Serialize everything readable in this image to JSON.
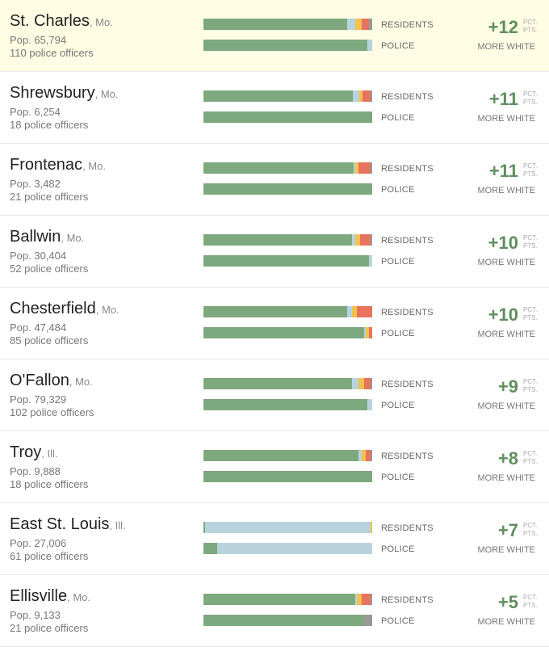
{
  "labels": {
    "residents": "RESIDENTS",
    "police": "POLICE",
    "pct": "PCT.",
    "pts": "PTS.",
    "more": "MORE WHITE"
  },
  "colors": {
    "white": "#7ea87e",
    "black": "#b9d3de",
    "hispanic": "#f2c14e",
    "asian": "#e8735e",
    "other": "#999999",
    "highlight_bg": "#fffde3",
    "diff_text": "#5f8f5f"
  },
  "chart_data": {
    "type": "bar",
    "segments": [
      "white",
      "black",
      "hispanic",
      "asian",
      "other"
    ],
    "rows": [
      {
        "city": "St. Charles",
        "state": ", Mo.",
        "pop": "Pop. 65,794",
        "officers": "110 police officers",
        "diff": "+12",
        "highlight": true,
        "residents": [
          85,
          5,
          4,
          4,
          2
        ],
        "police": [
          97,
          3,
          0,
          0,
          0
        ]
      },
      {
        "city": "Shrewsbury",
        "state": ", Mo.",
        "pop": "Pop. 6,254",
        "officers": "18 police officers",
        "diff": "+11",
        "residents": [
          88.5,
          4,
          2,
          4.5,
          1
        ],
        "police": [
          100,
          0,
          0,
          0,
          0
        ]
      },
      {
        "city": "Frontenac",
        "state": ", Mo.",
        "pop": "Pop. 3,482",
        "officers": "21 police officers",
        "diff": "+11",
        "residents": [
          89,
          1,
          2,
          7,
          1
        ],
        "police": [
          100,
          0,
          0,
          0,
          0
        ]
      },
      {
        "city": "Ballwin",
        "state": ", Mo.",
        "pop": "Pop. 30,404",
        "officers": "52 police officers",
        "diff": "+10",
        "residents": [
          88,
          2,
          3,
          6,
          1
        ],
        "police": [
          98,
          2,
          0,
          0,
          0
        ]
      },
      {
        "city": "Chesterfield",
        "state": ", Mo.",
        "pop": "Pop. 47,484",
        "officers": "85 police officers",
        "diff": "+10",
        "residents": [
          85,
          3,
          3,
          9,
          0
        ],
        "police": [
          95,
          1,
          2,
          2,
          0
        ]
      },
      {
        "city": "O'Fallon",
        "state": ", Mo.",
        "pop": "Pop. 79,329",
        "officers": "102 police officers",
        "diff": "+9",
        "residents": [
          88,
          4,
          3,
          4,
          1
        ],
        "police": [
          97,
          3,
          0,
          0,
          0
        ]
      },
      {
        "city": "Troy",
        "state": ", Ill.",
        "pop": "Pop. 9,888",
        "officers": "18 police officers",
        "diff": "+8",
        "residents": [
          92,
          2,
          2,
          3,
          1
        ],
        "police": [
          100,
          0,
          0,
          0,
          0
        ]
      },
      {
        "city": "East St. Louis",
        "state": ", Ill.",
        "pop": "Pop. 27,006",
        "officers": "61 police officers",
        "diff": "+7",
        "residents": [
          1,
          98,
          1,
          0,
          0
        ],
        "police": [
          8,
          92,
          0,
          0,
          0
        ]
      },
      {
        "city": "Ellisville",
        "state": ", Mo.",
        "pop": "Pop. 9,133",
        "officers": "21 police officers",
        "diff": "+5",
        "residents": [
          90,
          1,
          3,
          5,
          1
        ],
        "police": [
          95,
          0,
          0,
          0,
          5
        ]
      }
    ]
  }
}
